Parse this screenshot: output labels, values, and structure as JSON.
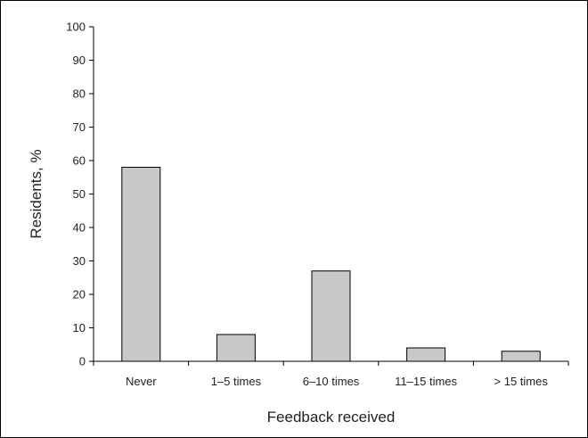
{
  "chart_data": {
    "type": "bar",
    "title": "",
    "xlabel": "Feedback received",
    "ylabel": "Residents, %",
    "categories": [
      "Never",
      "1–5 times",
      "6–10 times",
      "11–15 times",
      "> 15 times"
    ],
    "values": [
      58,
      8,
      27,
      4,
      3
    ],
    "ylim": [
      0,
      100
    ],
    "yticks": [
      0,
      10,
      20,
      30,
      40,
      50,
      60,
      70,
      80,
      90,
      100
    ],
    "grid": false,
    "legend": "none",
    "bar_color": "#c8c8c8",
    "bar_outline_color": "#000000"
  }
}
